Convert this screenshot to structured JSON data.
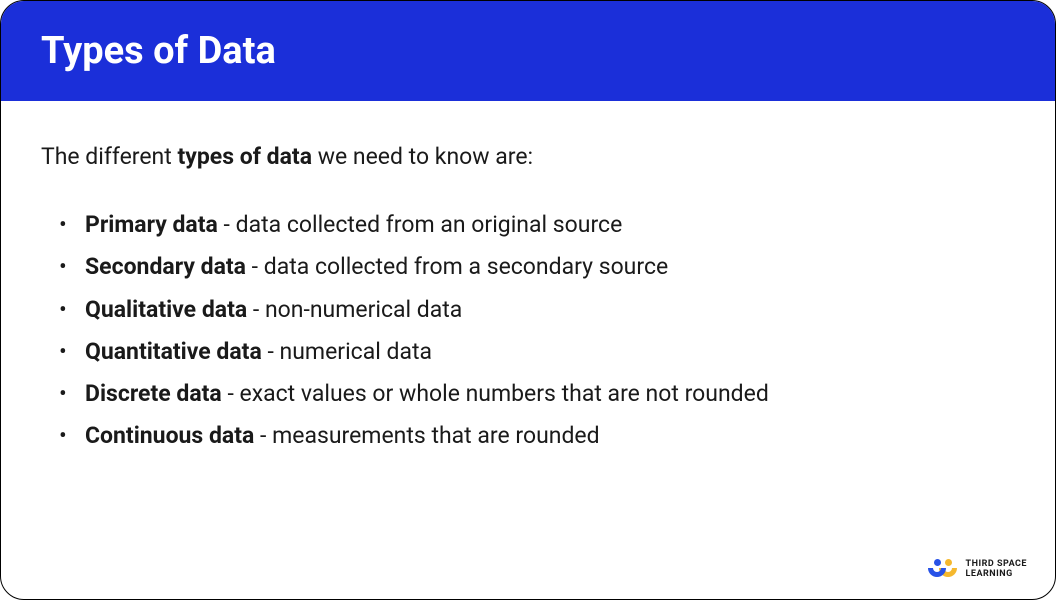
{
  "header": {
    "title": "Types of Data",
    "background_color": "#1b2fd9",
    "text_color": "#ffffff"
  },
  "intro": {
    "prefix": "The different ",
    "bold": "types of data",
    "suffix": " we need to know are:"
  },
  "items": [
    {
      "term": "Primary data",
      "definition": " - data collected from an original source"
    },
    {
      "term": "Secondary data",
      "definition": " - data collected from a secondary source"
    },
    {
      "term": "Qualitative data",
      "definition": " - non-numerical data"
    },
    {
      "term": "Quantitative data",
      "definition": " - numerical data"
    },
    {
      "term": "Discrete data",
      "definition": " - exact values or whole numbers that are not rounded"
    },
    {
      "term": "Continuous data",
      "definition": " - measurements that are rounded"
    }
  ],
  "logo": {
    "line1": "THIRD SPACE",
    "line2": "LEARNING",
    "colors": {
      "blue": "#2752e7",
      "yellow": "#f5b82e"
    }
  },
  "body": {
    "text_color": "#1a1a1a",
    "background_color": "#ffffff",
    "font_size_title": 38,
    "font_size_body": 23
  }
}
